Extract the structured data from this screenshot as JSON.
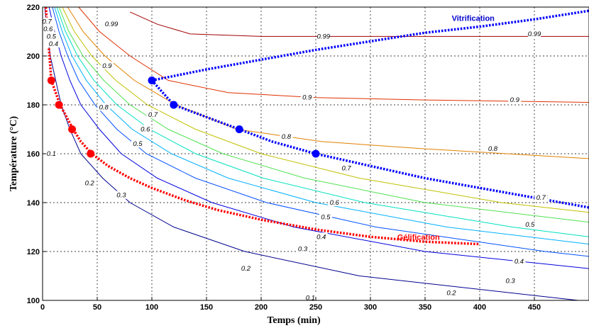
{
  "chart_data": {
    "type": "line",
    "title": "",
    "xlabel": "Temps (min)",
    "ylabel": "Température (°C)",
    "xlim": [
      0,
      500
    ],
    "ylim": [
      100,
      220
    ],
    "x_ticks": [
      0,
      50,
      100,
      150,
      200,
      250,
      300,
      350,
      400,
      450
    ],
    "y_ticks": [
      100,
      120,
      140,
      160,
      180,
      200,
      220
    ],
    "grid": true,
    "contours": [
      {
        "level": 0.1,
        "label": "0.1",
        "color": "#00008f",
        "points": [
          [
            2,
            220
          ],
          [
            4,
            210
          ],
          [
            7,
            200
          ],
          [
            12,
            190
          ],
          [
            17,
            180
          ],
          [
            25,
            170
          ],
          [
            35,
            160
          ],
          [
            55,
            150
          ],
          [
            80,
            140
          ],
          [
            120,
            130
          ],
          [
            185,
            120
          ],
          [
            290,
            110
          ],
          [
            490,
            100
          ]
        ],
        "label_positions": [
          [
            8,
            160
          ],
          [
            245,
            101
          ]
        ]
      },
      {
        "level": 0.2,
        "label": "0.2",
        "color": "#0000e0",
        "points": [
          [
            6,
            220
          ],
          [
            11,
            210
          ],
          [
            17,
            200
          ],
          [
            25,
            190
          ],
          [
            35,
            180
          ],
          [
            52,
            170
          ],
          [
            72,
            160
          ],
          [
            105,
            150
          ],
          [
            155,
            140
          ],
          [
            230,
            130
          ],
          [
            350,
            120
          ],
          [
            500,
            113
          ]
        ],
        "label_positions": [
          [
            43,
            148
          ],
          [
            186,
            113
          ],
          [
            374,
            103
          ]
        ]
      },
      {
        "level": 0.3,
        "label": "0.3",
        "color": "#0050ff",
        "points": [
          [
            9,
            220
          ],
          [
            15,
            210
          ],
          [
            23,
            200
          ],
          [
            33,
            190
          ],
          [
            48,
            180
          ],
          [
            68,
            170
          ],
          [
            95,
            160
          ],
          [
            140,
            150
          ],
          [
            205,
            140
          ],
          [
            305,
            130
          ],
          [
            460,
            120
          ],
          [
            500,
            118
          ]
        ],
        "label_positions": [
          [
            72,
            143
          ],
          [
            238,
            121
          ],
          [
            428,
            108
          ]
        ]
      },
      {
        "level": 0.4,
        "label": "0.4",
        "color": "#00b0ff",
        "points": [
          [
            11,
            220
          ],
          [
            18,
            210
          ],
          [
            27,
            200
          ],
          [
            40,
            190
          ],
          [
            58,
            180
          ],
          [
            82,
            170
          ],
          [
            118,
            160
          ],
          [
            170,
            150
          ],
          [
            250,
            140
          ],
          [
            370,
            130
          ],
          [
            500,
            123
          ]
        ],
        "label_positions": [
          [
            10,
            205
          ],
          [
            255,
            126
          ],
          [
            436,
            116
          ]
        ]
      },
      {
        "level": 0.5,
        "label": "0.5",
        "color": "#00e0c0",
        "points": [
          [
            13,
            220
          ],
          [
            21,
            210
          ],
          [
            32,
            200
          ],
          [
            47,
            190
          ],
          [
            68,
            180
          ],
          [
            98,
            170
          ],
          [
            140,
            160
          ],
          [
            202,
            150
          ],
          [
            295,
            140
          ],
          [
            430,
            130
          ],
          [
            500,
            126
          ]
        ],
        "label_positions": [
          [
            8,
            208
          ],
          [
            87,
            164
          ],
          [
            259,
            134
          ],
          [
            446,
            131
          ]
        ]
      },
      {
        "level": 0.6,
        "label": "0.6",
        "color": "#50e050",
        "points": [
          [
            15,
            220
          ],
          [
            24,
            210
          ],
          [
            37,
            200
          ],
          [
            56,
            190
          ],
          [
            80,
            180
          ],
          [
            115,
            170
          ],
          [
            165,
            160
          ],
          [
            240,
            150
          ],
          [
            350,
            140
          ],
          [
            500,
            132
          ]
        ],
        "label_positions": [
          [
            5,
            211
          ],
          [
            94,
            170
          ],
          [
            267,
            140
          ],
          [
            458,
            142
          ]
        ]
      },
      {
        "level": 0.7,
        "label": "0.7",
        "color": "#c0c000",
        "points": [
          [
            18,
            220
          ],
          [
            29,
            210
          ],
          [
            45,
            200
          ],
          [
            67,
            190
          ],
          [
            96,
            180
          ],
          [
            140,
            170
          ],
          [
            200,
            160
          ],
          [
            290,
            150
          ],
          [
            420,
            140
          ],
          [
            500,
            136
          ]
        ],
        "label_positions": [
          [
            4,
            214
          ],
          [
            101,
            176
          ],
          [
            278,
            154
          ],
          [
            456,
            142
          ]
        ]
      },
      {
        "level": 0.8,
        "label": "0.8",
        "color": "#e08000",
        "points": [
          [
            23,
            220
          ],
          [
            37,
            210
          ],
          [
            57,
            200
          ],
          [
            84,
            190
          ],
          [
            122,
            180
          ],
          [
            178,
            170
          ],
          [
            255,
            165
          ],
          [
            350,
            162
          ],
          [
            500,
            158
          ]
        ],
        "label_positions": [
          [
            56,
            179
          ],
          [
            223,
            167
          ],
          [
            412,
            162
          ]
        ]
      },
      {
        "level": 0.9,
        "label": "0.9",
        "color": "#e03000",
        "points": [
          [
            33,
            220
          ],
          [
            52,
            210
          ],
          [
            80,
            200
          ],
          [
            115,
            190
          ],
          [
            170,
            185
          ],
          [
            250,
            183
          ],
          [
            350,
            182
          ],
          [
            500,
            181
          ]
        ],
        "label_positions": [
          [
            59,
            196
          ],
          [
            242,
            183
          ],
          [
            432,
            182
          ]
        ]
      },
      {
        "level": 0.99,
        "label": "0.99",
        "color": "#a00000",
        "points": [
          [
            80,
            218
          ],
          [
            105,
            213
          ],
          [
            135,
            209
          ],
          [
            200,
            208
          ],
          [
            300,
            208
          ],
          [
            400,
            208
          ],
          [
            500,
            208
          ]
        ],
        "label_positions": [
          [
            63,
            213
          ],
          [
            257,
            208
          ],
          [
            450,
            209
          ]
        ]
      }
    ],
    "series": [
      {
        "name": "Gélification",
        "color": "#ff0000",
        "line_style": "dotted",
        "line_x": [
          3,
          8,
          12,
          16,
          22,
          28,
          35,
          45,
          60,
          80,
          100,
          130,
          160,
          200,
          250,
          300,
          350,
          400
        ],
        "line_y": [
          220,
          190,
          185,
          180,
          175,
          170,
          165,
          160,
          155,
          150,
          146,
          141,
          137,
          133,
          129,
          126,
          124,
          123
        ],
        "markers": [
          [
            8,
            190
          ],
          [
            15,
            180
          ],
          [
            27,
            170
          ],
          [
            44,
            160
          ]
        ]
      },
      {
        "name": "Vitrification",
        "color": "#0000ff",
        "line_style": "dotted",
        "line_x": [
          100,
          150,
          200,
          250,
          300,
          350,
          400,
          450,
          500
        ],
        "line_y": [
          190,
          194.5,
          198.5,
          202.5,
          206,
          209.5,
          212,
          215,
          218.5
        ],
        "markers": []
      },
      {
        "name": "",
        "color": "#0000ff",
        "line_style": "dotted",
        "line_x": [
          100,
          120,
          150,
          180,
          210,
          250,
          300,
          350,
          400,
          450,
          500
        ],
        "line_y": [
          190,
          180,
          175,
          170,
          165,
          160,
          155,
          150,
          146,
          142,
          138
        ],
        "markers": [
          [
            100,
            190
          ],
          [
            120,
            180
          ],
          [
            180,
            170
          ],
          [
            250,
            160
          ]
        ]
      }
    ],
    "annotations": [
      {
        "text": "Vitrification",
        "x": 394,
        "y": 215.5,
        "color": "#0000cc"
      },
      {
        "text": "Gélification",
        "x": 344,
        "y": 126,
        "color": "#ff0000"
      }
    ]
  }
}
